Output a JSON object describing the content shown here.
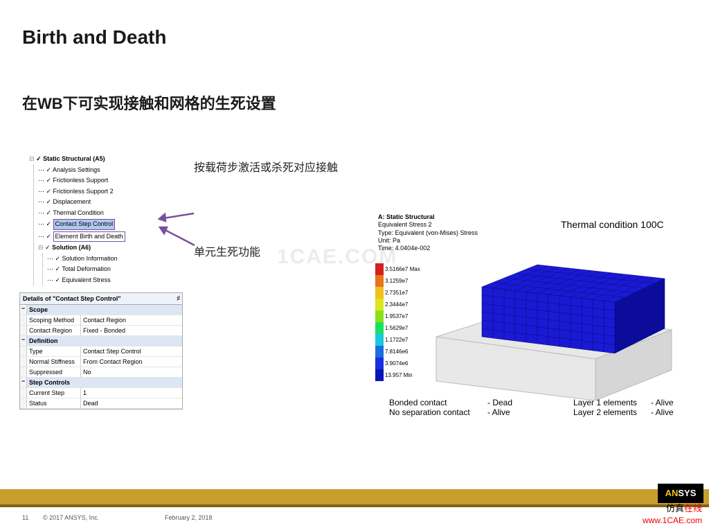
{
  "title": "Birth and Death",
  "subtitle": "在WB下可实现接触和网格的生死设置",
  "watermark": "1CAE.COM",
  "annotations": {
    "a1": "按载荷步激活或杀死对应接触",
    "a2": "单元生死功能"
  },
  "tree": {
    "root": "Static Structural (A5)",
    "items": [
      "Analysis Settings",
      "Frictionless Support",
      "Frictionless Support 2",
      "Displacement",
      "Thermal Condition"
    ],
    "hl1": "Contact Step Control",
    "hl2": "Element Birth and Death",
    "sol": "Solution (A6)",
    "sol_items": [
      "Solution Information",
      "Total Deformation",
      "Equivalent Stress"
    ]
  },
  "details": {
    "header": "Details of \"Contact Step Control\"",
    "sections": [
      {
        "name": "Scope",
        "rows": [
          {
            "k": "Scoping Method",
            "v": "Contact Region"
          },
          {
            "k": "Contact Region",
            "v": "Fixed - Bonded"
          }
        ]
      },
      {
        "name": "Definition",
        "rows": [
          {
            "k": "Type",
            "v": "Contact Step Control"
          },
          {
            "k": "Normal Stiffness",
            "v": "From Contact Region"
          },
          {
            "k": "Suppressed",
            "v": "No"
          }
        ]
      },
      {
        "name": "Step Controls",
        "rows": [
          {
            "k": "Current Step",
            "v": "1"
          },
          {
            "k": "Status",
            "v": "Dead"
          }
        ]
      }
    ]
  },
  "sim": {
    "h1": "A: Static Structural",
    "h2": "Equivalent Stress 2",
    "h3": "Type: Equivalent (von-Mises) Stress",
    "h4": "Unit: Pa",
    "h5": "Time: 4.0404e-002",
    "thermal": "Thermal condition 100C",
    "legend": [
      {
        "c": "#d32020",
        "l": "3.5166e7 Max"
      },
      {
        "c": "#e87420",
        "l": "3.1259e7"
      },
      {
        "c": "#f2c01a",
        "l": "2.7351e7"
      },
      {
        "c": "#d9e81a",
        "l": "2.3444e7"
      },
      {
        "c": "#8be01a",
        "l": "1.9537e7"
      },
      {
        "c": "#1ae060",
        "l": "1.5629e7"
      },
      {
        "c": "#1ac8e0",
        "l": "1.1722e7"
      },
      {
        "c": "#1a6fe0",
        "l": "7.8146e6"
      },
      {
        "c": "#1a2fe0",
        "l": "3.9074e6"
      },
      {
        "c": "#0a14b8",
        "l": "13.957 Min"
      }
    ],
    "block_color": "#1a1ad4",
    "base_color": "#e8e8e8",
    "grid_color": "#0a0a80"
  },
  "status": [
    [
      "Bonded contact",
      "- Dead",
      "Layer 1 elements",
      "- Alive"
    ],
    [
      "No separation contact",
      "- Alive",
      "Layer 2 elements",
      "- Alive"
    ]
  ],
  "footer": {
    "page": "11",
    "copyright": "© 2017 ANSYS, Inc.",
    "date": "February 2, 2018",
    "logo": "ANSYS",
    "brand1": "仿真",
    "brand2": "在线",
    "url": "www.1CAE.com"
  }
}
